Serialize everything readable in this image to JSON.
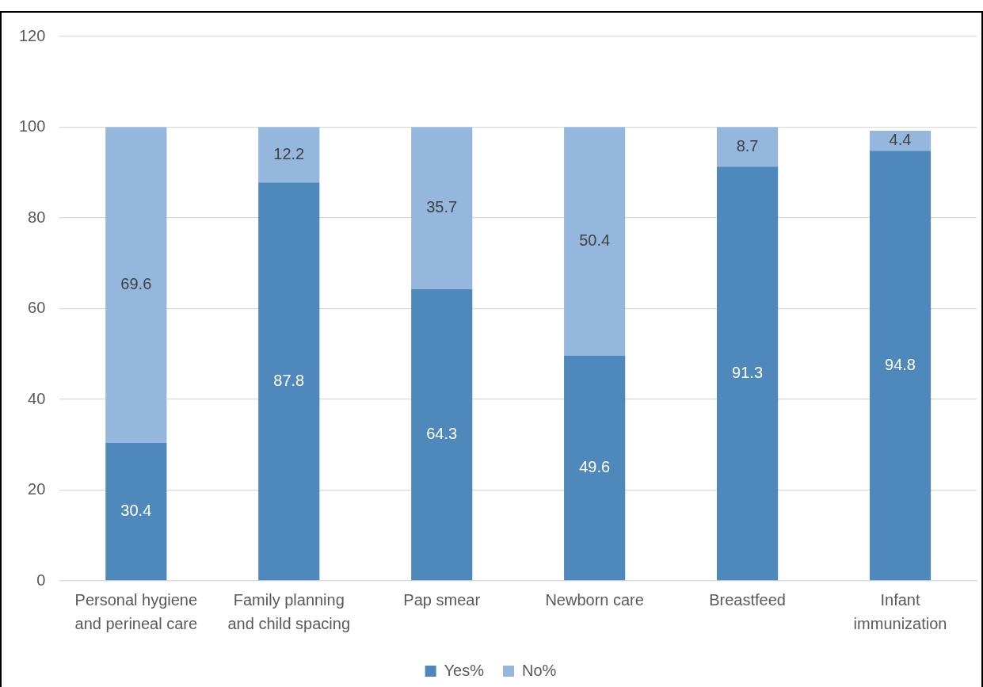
{
  "chart_data": {
    "type": "bar",
    "stacked": true,
    "categories": [
      "Personal hygiene and perineal care",
      "Family planning and child spacing",
      "Pap smear",
      "Newborn care",
      "Breastfeed",
      "Infant immunization"
    ],
    "series": [
      {
        "name": "Yes%",
        "color": "#4f88bb",
        "values": [
          30.4,
          87.8,
          64.3,
          49.6,
          91.3,
          94.8
        ]
      },
      {
        "name": "No%",
        "color": "#95b7de",
        "values": [
          69.6,
          12.2,
          35.7,
          50.4,
          8.7,
          4.4
        ]
      }
    ],
    "ylim": [
      0,
      120
    ],
    "yticks": [
      0,
      20,
      40,
      60,
      80,
      100,
      120
    ],
    "grid": "y",
    "legend": "bottom",
    "data_labels": true
  }
}
